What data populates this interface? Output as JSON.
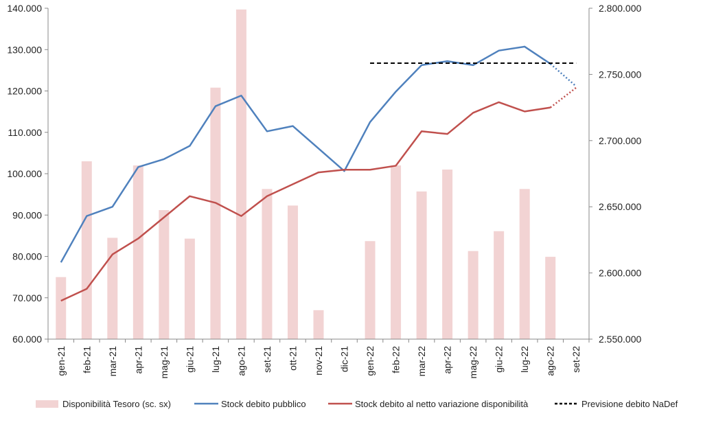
{
  "chart_data": {
    "type": "bar+line",
    "categories": [
      "gen-21",
      "feb-21",
      "mar-21",
      "apr-21",
      "mag-21",
      "giu-21",
      "lug-21",
      "ago-21",
      "set-21",
      "ott-21",
      "nov-21",
      "dic-21",
      "gen-22",
      "feb-22",
      "mar-22",
      "apr-22",
      "mag-22",
      "giu-22",
      "lug-22",
      "ago-22",
      "set-22"
    ],
    "left_axis": {
      "min": 60000,
      "max": 140000,
      "step": 10000,
      "tick_labels": [
        "60.000",
        "70.000",
        "80.000",
        "90.000",
        "100.000",
        "110.000",
        "120.000",
        "130.000",
        "140.000"
      ]
    },
    "right_axis": {
      "min": 2550000,
      "max": 2800000,
      "step": 50000,
      "tick_labels": [
        "2.550.000",
        "2.600.000",
        "2.650.000",
        "2.700.000",
        "2.750.000",
        "2.800.000"
      ]
    },
    "series": [
      {
        "name": "Disponibilità Tesoro (sc. sx)",
        "type": "bar",
        "axis": "left",
        "color": "#f2d3d3",
        "values": [
          75000,
          103000,
          84500,
          102000,
          91200,
          84300,
          120800,
          139700,
          96300,
          92300,
          67000,
          null,
          83700,
          102000,
          95700,
          101000,
          81300,
          86100,
          96300,
          79900,
          null
        ]
      },
      {
        "name": "Stock debito pubblico",
        "type": "line",
        "axis": "right",
        "color": "#4f81bd",
        "values": [
          2608000,
          2643000,
          2650000,
          2680000,
          2686000,
          2696000,
          2726000,
          2734000,
          2707000,
          2711000,
          2694000,
          2677000,
          2714000,
          2737000,
          2757000,
          2760000,
          2757000,
          2768000,
          2771000,
          2758000,
          2741000
        ],
        "forecast_from_index": 19
      },
      {
        "name": "Stock debito al netto variazione disponibilità",
        "type": "line",
        "axis": "right",
        "color": "#c0504d",
        "values": [
          2579000,
          2588000,
          2614000,
          2626000,
          2642000,
          2658000,
          2653000,
          2643000,
          2658000,
          2667000,
          2676000,
          2678000,
          2678000,
          2681000,
          2707000,
          2705000,
          2721000,
          2729000,
          2722000,
          2725000,
          2740000
        ],
        "forecast_from_index": 19
      },
      {
        "name": "Previsione debito NaDef",
        "type": "line",
        "axis": "right",
        "color": "#000000",
        "dash": true,
        "start_index": 12,
        "end_index": 20,
        "value": 2758500
      }
    ],
    "legend_position": "bottom",
    "grid": false
  }
}
